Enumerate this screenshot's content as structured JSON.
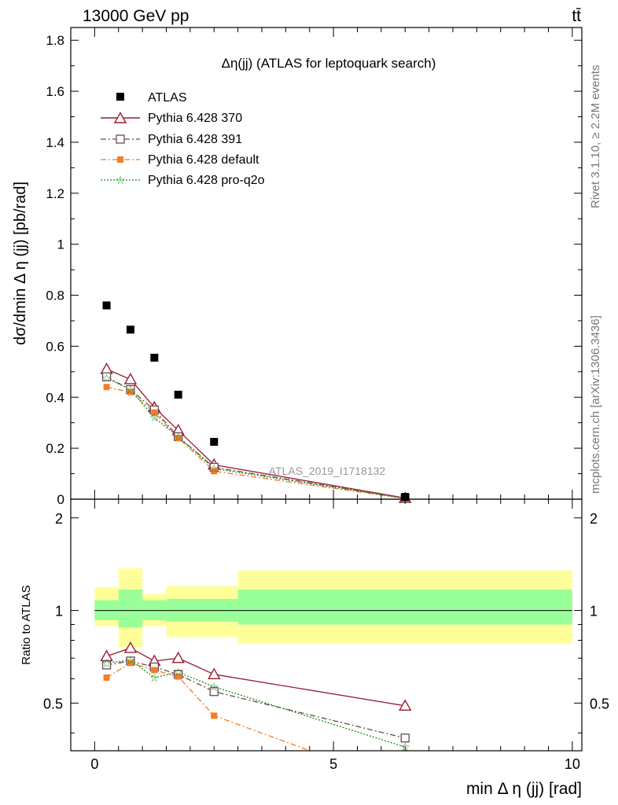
{
  "header": {
    "left": "13000 GeV pp",
    "right": "tt̄"
  },
  "side_labels": {
    "rivet": "Rivet 3.1.10, ≥ 2.2M events",
    "mcplots": "mcplots.cern.ch [arXiv:1306.3436]"
  },
  "colors": {
    "atlas": "#000000",
    "p370": "#9a1b2e",
    "p391": "#6b4a55",
    "pdefault": "#f47c2c",
    "pq2o": "#1b8a1b",
    "band_inner": "#99ff99",
    "band_outer": "#ffff99"
  },
  "chart_data": {
    "type": "scatter",
    "title": "Δη(jj) (ATLAS for leptoquark search)",
    "xlabel": "min Δ η (jj) [rad]",
    "ylabel": "dσ/dmin Δ η (jj) [pb/rad]",
    "ratio_ylabel": "Ratio to ATLAS",
    "watermark": "ATLAS_2019_I1718132",
    "xlim": [
      -0.5,
      10.2
    ],
    "ylim": [
      0,
      1.85
    ],
    "ratio_ylim": [
      0.35,
      2.3
    ],
    "x_ticks": [
      0,
      5,
      10
    ],
    "y_tick_labels": [
      "0",
      "0.2",
      "0.4",
      "0.6",
      "0.8",
      "1",
      "1.2",
      "1.4",
      "1.6",
      "1.8"
    ],
    "ratio_tick_labels": [
      "0.5",
      "1",
      "2"
    ],
    "legend_position": "top-left",
    "bins": [
      [
        0,
        0.5
      ],
      [
        0.5,
        1.0
      ],
      [
        1.0,
        1.5
      ],
      [
        1.5,
        2.0
      ],
      [
        2.0,
        3.0
      ],
      [
        3.0,
        10.0
      ]
    ],
    "x": [
      0.25,
      0.75,
      1.25,
      1.75,
      2.5,
      6.5
    ],
    "series": [
      {
        "name": "ATLAS",
        "key": "atlas",
        "marker": "square-filled",
        "line": "none",
        "values": [
          0.76,
          0.665,
          0.555,
          0.41,
          0.225,
          0.009
        ]
      },
      {
        "name": "Pythia 6.428 370",
        "key": "p370",
        "marker": "triangle-open",
        "line": "solid",
        "values": [
          0.51,
          0.47,
          0.36,
          0.27,
          0.135,
          0.0045
        ],
        "ratio": [
          0.71,
          0.755,
          0.685,
          0.7,
          0.62,
          0.49
        ]
      },
      {
        "name": "Pythia 6.428 391",
        "key": "p391",
        "marker": "square-open",
        "line": "dashdot",
        "values": [
          0.48,
          0.43,
          0.35,
          0.245,
          0.125,
          0.0035
        ],
        "ratio": [
          0.665,
          0.685,
          0.655,
          0.62,
          0.545,
          0.385
        ]
      },
      {
        "name": "Pythia 6.428 default",
        "key": "pdefault",
        "marker": "square-filled-small",
        "line": "dashdot",
        "values": [
          0.44,
          0.42,
          0.34,
          0.24,
          0.11,
          0.0025
        ],
        "ratio": [
          0.605,
          0.675,
          0.64,
          0.61,
          0.455,
          0.27
        ]
      },
      {
        "name": "Pythia 6.428 pro-q2o",
        "key": "pq2o",
        "marker": "star",
        "line": "dotted",
        "values": [
          0.475,
          0.43,
          0.32,
          0.245,
          0.12,
          0.0032
        ],
        "ratio": [
          0.675,
          0.69,
          0.605,
          0.63,
          0.565,
          0.36
        ]
      }
    ],
    "band_inner": [
      [
        0.93,
        1.08
      ],
      [
        0.88,
        1.17
      ],
      [
        0.93,
        1.08
      ],
      [
        0.92,
        1.09
      ],
      [
        0.92,
        1.09
      ],
      [
        0.9,
        1.17
      ]
    ],
    "band_outer": [
      [
        0.89,
        1.19
      ],
      [
        0.76,
        1.37
      ],
      [
        0.89,
        1.13
      ],
      [
        0.82,
        1.2
      ],
      [
        0.82,
        1.2
      ],
      [
        0.78,
        1.35
      ]
    ]
  }
}
